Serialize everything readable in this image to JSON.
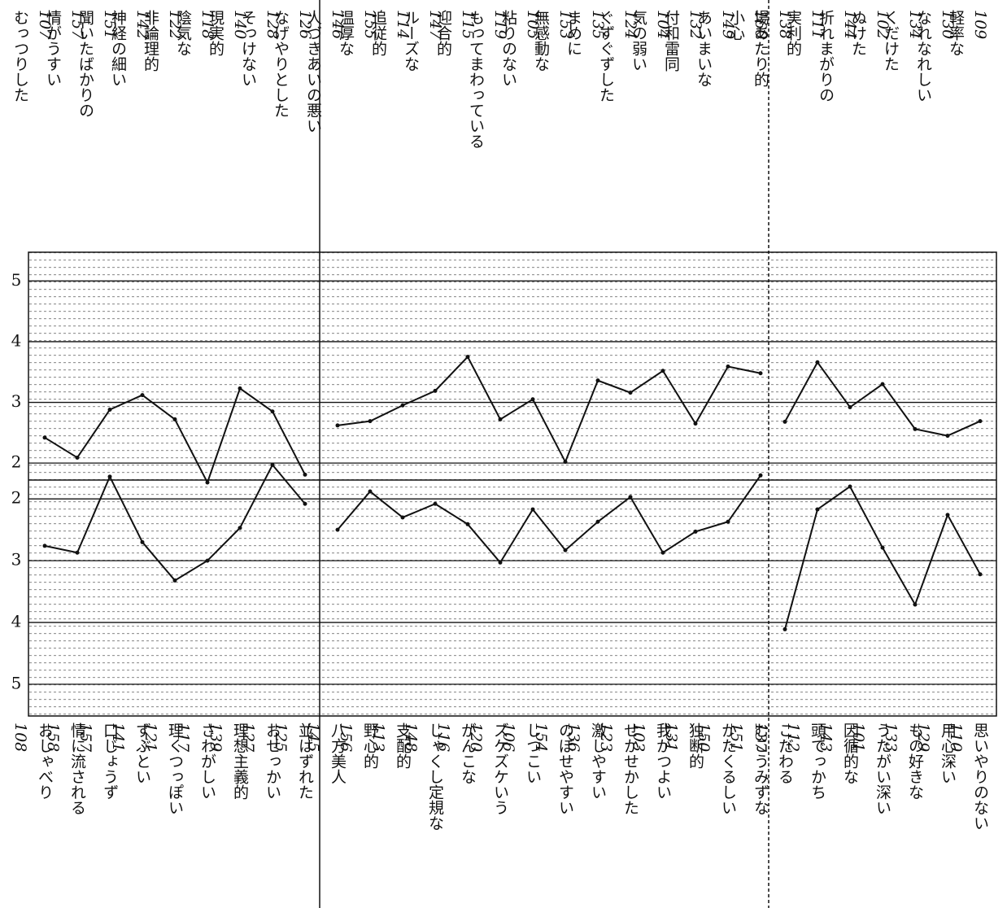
{
  "chart_data": [
    {
      "type": "line",
      "ylim": [
        1.6,
        5.5
      ],
      "yticks": [
        2,
        3,
        4,
        5
      ],
      "grid": true,
      "color": "#111",
      "values": [
        2.42,
        2.09,
        2.88,
        3.12,
        2.72,
        1.68,
        3.23,
        2.85,
        1.81,
        null,
        2.62,
        2.69,
        2.95,
        3.19,
        3.75,
        2.72,
        3.05,
        2.02,
        3.36,
        3.16,
        3.52,
        2.65,
        3.59,
        3.48,
        null,
        2.68,
        3.66,
        2.92,
        3.3,
        2.56,
        2.45,
        2.69
      ]
    },
    {
      "type": "line",
      "ylim": [
        5.5,
        1.3
      ],
      "yticks": [
        2,
        3,
        4,
        5
      ],
      "grid": true,
      "color": "#111",
      "values": [
        2.76,
        2.87,
        1.64,
        2.7,
        3.32,
        3.0,
        2.47,
        1.45,
        2.08,
        null,
        2.5,
        1.88,
        2.3,
        2.08,
        2.41,
        3.03,
        2.17,
        2.83,
        2.37,
        1.97,
        2.87,
        2.53,
        2.37,
        1.62,
        null,
        4.11,
        2.17,
        1.8,
        2.79,
        3.71,
        2.26,
        3.22
      ]
    }
  ],
  "columns": [
    {
      "top": [
        {
          "number": 107,
          "label": "むっつりした"
        },
        {
          "number": 157,
          "label": "情がうすい"
        },
        {
          "number": 151,
          "label": "聞いたばかりの"
        },
        {
          "number": 142,
          "label": "神経の細い"
        },
        {
          "number": 122,
          "label": "非論理的"
        },
        {
          "number": 118,
          "label": "陰気な"
        },
        {
          "number": 140,
          "label": "現実的"
        },
        {
          "number": 128,
          "label": "そっけない"
        },
        {
          "number": 126,
          "label": "なげやりとした"
        }
      ],
      "bottom": [
        {
          "number": 108,
          "label": "おしゃべり"
        },
        {
          "number": 158,
          "label": "情に流される"
        },
        {
          "number": 157,
          "label": "口じょうず"
        },
        {
          "number": 141,
          "label": "ずぶとい"
        },
        {
          "number": 121,
          "label": "理くつっぽい"
        },
        {
          "number": 117,
          "label": "さわがしい"
        },
        {
          "number": 139,
          "label": "理想主義的"
        },
        {
          "number": 127,
          "label": "おせっかい"
        },
        {
          "number": 125,
          "label": "並はずれた"
        }
      ]
    },
    {
      "top": [
        {
          "number": 146,
          "label": "人づきあいの悪い"
        },
        {
          "number": 155,
          "label": "温厚な"
        },
        {
          "number": 114,
          "label": "追従的"
        },
        {
          "number": 147,
          "label": "ルーズな"
        },
        {
          "number": 115,
          "label": "迎合的"
        },
        {
          "number": 119,
          "label": "もってまわっている"
        },
        {
          "number": 105,
          "label": "粘りのない"
        },
        {
          "number": 153,
          "label": "無感動な"
        },
        {
          "number": 135,
          "label": "まめに"
        },
        {
          "number": 124,
          "label": "ぐずぐずした"
        },
        {
          "number": 104,
          "label": "気の弱い"
        },
        {
          "number": 132,
          "label": "付和雷同"
        },
        {
          "number": 149,
          "label": "あいまいな"
        },
        {
          "number": 160,
          "label": "小心"
        }
      ],
      "bottom": [
        {
          "number": 145,
          "label": "八方美人"
        },
        {
          "number": 156,
          "label": "野心的"
        },
        {
          "number": 113,
          "label": "支配的"
        },
        {
          "number": 148,
          "label": "しゃくし定規な"
        },
        {
          "number": 116,
          "label": "がんこな"
        },
        {
          "number": 120,
          "label": "ズケズケいう"
        },
        {
          "number": 106,
          "label": "しつこい"
        },
        {
          "number": 154,
          "label": "のぼせやすい"
        },
        {
          "number": 136,
          "label": "激しやすい"
        },
        {
          "number": 123,
          "label": "せかせかした"
        },
        {
          "number": 103,
          "label": "我がつよい"
        },
        {
          "number": 131,
          "label": "独断的"
        },
        {
          "number": 150,
          "label": "かたくるしい"
        },
        {
          "number": 151,
          "label": "むこうみずな"
        }
      ]
    },
    {
      "top": [
        {
          "number": 138,
          "label": "場あたり的"
        },
        {
          "number": 111,
          "label": "実利的"
        },
        {
          "number": 144,
          "label": "折れまがりの"
        },
        {
          "number": 102,
          "label": "ぬけた"
        },
        {
          "number": 134,
          "label": "くだけた"
        },
        {
          "number": 130,
          "label": "なれなれしい"
        },
        {
          "number": 109,
          "label": "軽率な"
        }
      ],
      "bottom": [
        {
          "number": 137,
          "label": "こだわる"
        },
        {
          "number": 112,
          "label": "頭でっかち"
        },
        {
          "number": 143,
          "label": "因循的な"
        },
        {
          "number": 101,
          "label": "うたがい深い"
        },
        {
          "number": 133,
          "label": "もの好きな"
        },
        {
          "number": 129,
          "label": "用心深い"
        },
        {
          "number": 110,
          "label": "思いやりのない"
        }
      ]
    }
  ]
}
